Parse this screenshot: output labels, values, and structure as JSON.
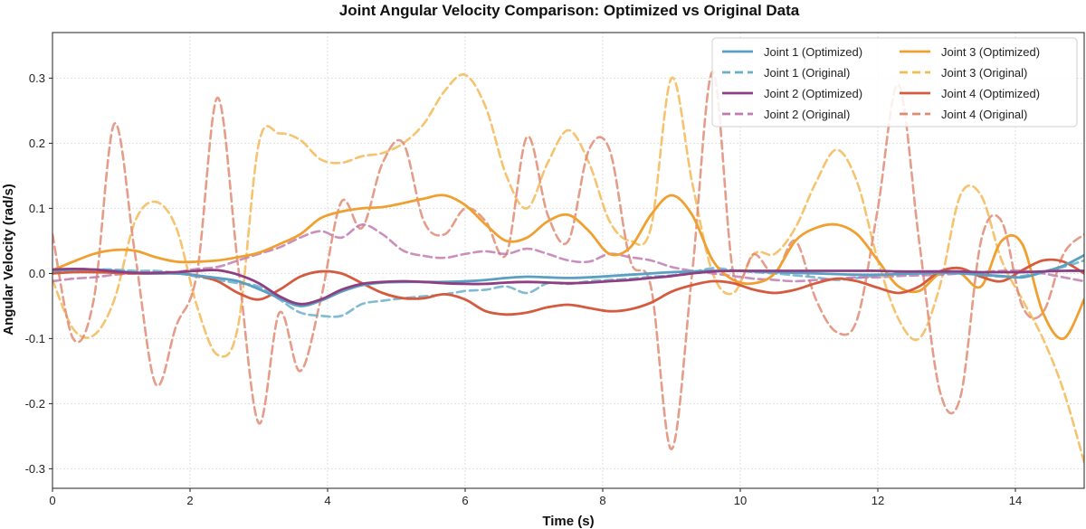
{
  "chart_data": {
    "type": "line",
    "title": "Joint Angular Velocity Comparison: Optimized vs Original Data",
    "xlabel": "Time (s)",
    "ylabel": "Angular Velocity (rad/s)",
    "xlim": [
      0,
      15
    ],
    "ylim": [
      -0.33,
      0.37
    ],
    "xticks": [
      0,
      2,
      4,
      6,
      8,
      10,
      12,
      14
    ],
    "yticks": [
      -0.3,
      -0.2,
      -0.1,
      0.0,
      0.1,
      0.2,
      0.3
    ],
    "grid": true,
    "legend_position": "top-right",
    "legend_columns": 2,
    "x": [
      0,
      0.3,
      0.6,
      0.9,
      1.2,
      1.5,
      1.8,
      2.1,
      2.4,
      2.7,
      3.0,
      3.3,
      3.6,
      3.9,
      4.2,
      4.5,
      4.8,
      5.1,
      5.4,
      5.7,
      6.0,
      6.3,
      6.6,
      6.9,
      7.2,
      7.5,
      7.8,
      8.1,
      8.4,
      8.7,
      9.0,
      9.3,
      9.6,
      9.9,
      10.2,
      10.5,
      10.8,
      11.1,
      11.4,
      11.7,
      12.0,
      12.3,
      12.6,
      12.9,
      13.2,
      13.5,
      13.8,
      14.1,
      14.4,
      14.7,
      15.0
    ],
    "series": [
      {
        "name": "Joint 1 (Optimized)",
        "color": "#5b9fc2",
        "dashed": false,
        "values": [
          0.004,
          0.006,
          0.006,
          0.004,
          0.001,
          0.0,
          0.0,
          -0.003,
          -0.007,
          -0.012,
          -0.024,
          -0.038,
          -0.05,
          -0.042,
          -0.028,
          -0.018,
          -0.014,
          -0.013,
          -0.013,
          -0.013,
          -0.012,
          -0.01,
          -0.007,
          -0.005,
          -0.006,
          -0.007,
          -0.006,
          -0.004,
          -0.002,
          0.0,
          0.002,
          0.003,
          0.004,
          0.004,
          0.003,
          0.002,
          0.001,
          0.0,
          -0.001,
          -0.002,
          -0.002,
          -0.001,
          0.0,
          0.001,
          0.0,
          -0.002,
          -0.004,
          -0.006,
          0.002,
          0.012,
          0.028
        ]
      },
      {
        "name": "Joint 1 (Original)",
        "color": "#6aaecb",
        "dashed": true,
        "values": [
          0.0,
          0.004,
          0.006,
          0.006,
          0.004,
          0.004,
          0.001,
          -0.005,
          -0.01,
          -0.015,
          -0.02,
          -0.04,
          -0.06,
          -0.065,
          -0.065,
          -0.047,
          -0.042,
          -0.038,
          -0.035,
          -0.032,
          -0.027,
          -0.025,
          -0.02,
          -0.03,
          -0.015,
          -0.016,
          -0.012,
          -0.01,
          -0.008,
          -0.005,
          -0.003,
          0.002,
          0.008,
          0.005,
          0.002,
          0.0,
          -0.003,
          -0.006,
          -0.01,
          -0.007,
          -0.003,
          0.0,
          0.002,
          0.003,
          0.001,
          -0.002,
          -0.005,
          -0.004,
          0.003,
          0.01,
          0.02
        ]
      },
      {
        "name": "Joint 2 (Optimized)",
        "color": "#8e3f82",
        "dashed": false,
        "values": [
          0.006,
          0.007,
          0.006,
          0.003,
          0.001,
          0.001,
          0.002,
          0.004,
          0.005,
          -0.002,
          -0.015,
          -0.035,
          -0.047,
          -0.04,
          -0.025,
          -0.016,
          -0.013,
          -0.012,
          -0.013,
          -0.015,
          -0.016,
          -0.016,
          -0.014,
          -0.013,
          -0.014,
          -0.015,
          -0.014,
          -0.012,
          -0.01,
          -0.007,
          -0.004,
          0.0,
          0.003,
          0.004,
          0.004,
          0.004,
          0.004,
          0.004,
          0.004,
          0.004,
          0.004,
          0.003,
          0.003,
          0.003,
          0.003,
          0.002,
          0.002,
          0.002,
          0.003,
          0.004,
          0.004
        ]
      },
      {
        "name": "Joint 2 (Original)",
        "color": "#c27bb0",
        "dashed": true,
        "values": [
          -0.012,
          -0.008,
          -0.006,
          -0.002,
          0.0,
          0.0,
          0.002,
          0.007,
          0.01,
          0.02,
          0.03,
          0.04,
          0.055,
          0.065,
          0.055,
          0.075,
          0.06,
          0.035,
          0.027,
          0.024,
          0.03,
          0.034,
          0.03,
          0.038,
          0.03,
          0.02,
          0.018,
          0.03,
          0.025,
          0.02,
          0.01,
          0.004,
          0.0,
          -0.004,
          -0.008,
          -0.01,
          -0.012,
          -0.01,
          -0.008,
          -0.006,
          -0.006,
          -0.004,
          -0.003,
          -0.002,
          0.0,
          0.002,
          0.004,
          0.004,
          0.0,
          -0.006,
          -0.012
        ]
      },
      {
        "name": "Joint 3 (Optimized)",
        "color": "#f0a030",
        "dashed": false,
        "values": [
          0.005,
          0.018,
          0.03,
          0.036,
          0.035,
          0.025,
          0.018,
          0.018,
          0.02,
          0.025,
          0.032,
          0.045,
          0.06,
          0.085,
          0.095,
          0.1,
          0.102,
          0.108,
          0.115,
          0.12,
          0.105,
          0.075,
          0.05,
          0.055,
          0.08,
          0.09,
          0.065,
          0.03,
          0.04,
          0.09,
          0.12,
          0.09,
          0.02,
          -0.01,
          -0.015,
          0.0,
          0.05,
          0.07,
          0.075,
          0.06,
          0.02,
          -0.02,
          -0.027,
          0.0,
          0.0,
          -0.02,
          0.05,
          0.045,
          -0.06,
          -0.1,
          -0.04
        ]
      },
      {
        "name": "Joint 3 (Original)",
        "color": "#f5b955",
        "dashed": true,
        "values": [
          -0.01,
          -0.085,
          -0.095,
          -0.04,
          0.08,
          0.11,
          0.07,
          -0.05,
          -0.125,
          -0.08,
          0.2,
          0.215,
          0.205,
          0.175,
          0.17,
          0.18,
          0.185,
          0.2,
          0.23,
          0.28,
          0.305,
          0.255,
          0.15,
          0.1,
          0.17,
          0.22,
          0.17,
          0.08,
          0.05,
          0.07,
          0.3,
          0.14,
          0.0,
          -0.03,
          0.03,
          0.03,
          0.07,
          0.14,
          0.19,
          0.14,
          0.02,
          -0.07,
          -0.1,
          -0.02,
          0.12,
          0.12,
          0.02,
          -0.04,
          -0.1,
          -0.18,
          -0.29
        ]
      },
      {
        "name": "Joint 4 (Optimized)",
        "color": "#d45b3f",
        "dashed": false,
        "values": [
          0.0,
          0.002,
          0.002,
          0.001,
          0.0,
          0.0,
          0.0,
          -0.003,
          -0.012,
          -0.03,
          -0.04,
          -0.025,
          -0.005,
          0.003,
          0.0,
          -0.015,
          -0.03,
          -0.038,
          -0.038,
          -0.032,
          -0.04,
          -0.058,
          -0.063,
          -0.06,
          -0.052,
          -0.048,
          -0.053,
          -0.058,
          -0.055,
          -0.045,
          -0.028,
          -0.018,
          -0.012,
          -0.015,
          -0.025,
          -0.03,
          -0.025,
          -0.015,
          -0.008,
          -0.012,
          -0.022,
          -0.03,
          -0.02,
          0.003,
          0.008,
          -0.005,
          -0.012,
          0.005,
          0.02,
          0.018,
          0.0
        ]
      },
      {
        "name": "Joint 4 (Original)",
        "color": "#e08c74",
        "dashed": true,
        "values": [
          0.06,
          -0.1,
          -0.04,
          0.23,
          0.03,
          -0.17,
          -0.08,
          0.0,
          0.27,
          0.01,
          -0.23,
          -0.06,
          -0.15,
          -0.04,
          0.11,
          0.07,
          0.17,
          0.2,
          0.08,
          0.06,
          0.1,
          0.08,
          0.03,
          0.21,
          0.09,
          0.05,
          0.19,
          0.19,
          0.02,
          -0.02,
          -0.27,
          0.0,
          0.31,
          0.0,
          0.03,
          0.0,
          0.05,
          -0.04,
          -0.09,
          -0.07,
          0.1,
          0.29,
          0.05,
          -0.18,
          -0.19,
          0.05,
          0.08,
          -0.05,
          -0.06,
          0.03,
          0.06
        ]
      }
    ]
  }
}
